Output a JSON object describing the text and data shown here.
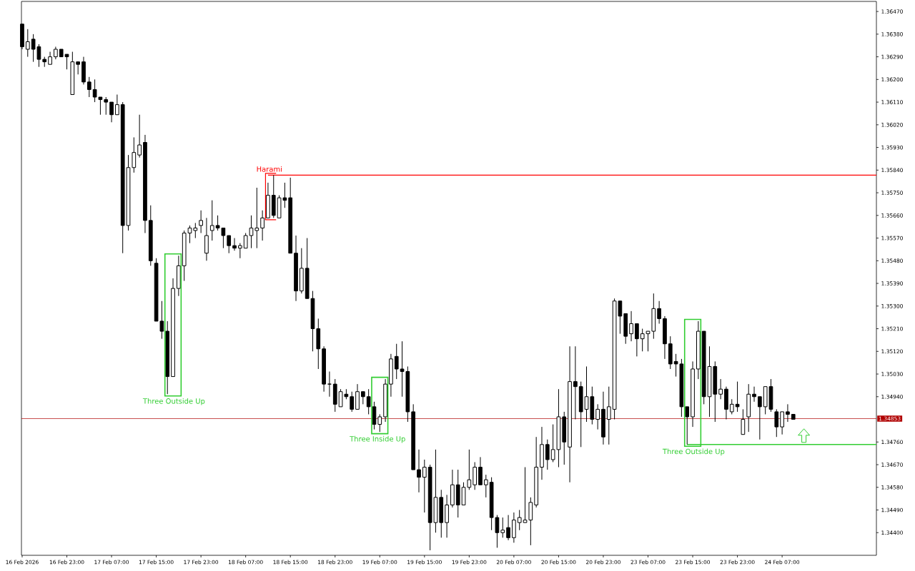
{
  "chart_data": {
    "type": "candlestick",
    "categories": [
      "16 Feb 2026",
      null,
      null,
      null,
      null,
      null,
      null,
      null,
      "16 Feb 23:00",
      null,
      null,
      null,
      null,
      null,
      null,
      null,
      "17 Feb 07:00",
      null,
      null,
      null,
      null,
      null,
      null,
      null,
      "17 Feb 15:00",
      null,
      null,
      null,
      null,
      null,
      null,
      null,
      "17 Feb 23:00",
      null,
      null,
      null,
      null,
      null,
      null,
      null,
      "18 Feb 07:00",
      null,
      null,
      null,
      null,
      null,
      null,
      null,
      "18 Feb 15:00",
      null,
      null,
      null,
      null,
      null,
      null,
      null,
      "18 Feb 23:00",
      null,
      null,
      null,
      null,
      null,
      null,
      null,
      "19 Feb 07:00",
      null,
      null,
      null,
      null,
      null,
      null,
      null,
      "19 Feb 15:00",
      null,
      null,
      null,
      null,
      null,
      null,
      null,
      "19 Feb 23:00",
      null,
      null,
      null,
      null,
      null,
      null,
      null,
      "20 Feb 07:00",
      null,
      null,
      null,
      null,
      null,
      null,
      null,
      "20 Feb 15:00",
      null,
      null,
      null,
      null,
      null,
      null,
      null,
      "20 Feb 23:00",
      null,
      null,
      null,
      null,
      null,
      null,
      null,
      "23 Feb 07:00",
      null,
      null,
      null,
      null,
      null,
      null,
      null,
      "23 Feb 15:00",
      null,
      null,
      null,
      null,
      null,
      null,
      null,
      "23 Feb 23:00",
      null,
      null,
      null,
      null,
      null,
      null,
      null,
      "24 Feb 07:00",
      null,
      null,
      null,
      null,
      null,
      null,
      null,
      null,
      null,
      null,
      null,
      null,
      null,
      null,
      null,
      null,
      null
    ],
    "ohlc": [
      [
        1.3642,
        1.3642,
        1.3632,
        1.3633
      ],
      [
        1.3632,
        1.364,
        1.3629,
        1.3635
      ],
      [
        1.3636,
        1.3638,
        1.3627,
        1.3632
      ],
      [
        1.3633,
        1.3634,
        1.3625,
        1.3628
      ],
      [
        1.3628,
        1.3629,
        1.3625,
        1.3627
      ],
      [
        1.3626,
        1.3631,
        1.3626,
        1.3629
      ],
      [
        1.3629,
        1.3633,
        1.3628,
        1.3632
      ],
      [
        1.3632,
        1.3632,
        1.3629,
        1.3629
      ],
      [
        1.363,
        1.363,
        1.3624,
        1.3629
      ],
      [
        1.3614,
        1.3631,
        1.3614,
        1.3627
      ],
      [
        1.3627,
        1.3627,
        1.3622,
        1.3626
      ],
      [
        1.3627,
        1.3629,
        1.3618,
        1.3619
      ],
      [
        1.3619,
        1.3621,
        1.3613,
        1.3616
      ],
      [
        1.3616,
        1.362,
        1.3611,
        1.3613
      ],
      [
        1.3613,
        1.3613,
        1.3606,
        1.3612
      ],
      [
        1.3612,
        1.3613,
        1.3606,
        1.3611
      ],
      [
        1.3611,
        1.3611,
        1.3603,
        1.3606
      ],
      [
        1.3606,
        1.3614,
        1.3606,
        1.361
      ],
      [
        1.361,
        1.3611,
        1.3551,
        1.3562
      ],
      [
        1.3562,
        1.359,
        1.356,
        1.3585
      ],
      [
        1.3585,
        1.3597,
        1.3583,
        1.3591
      ],
      [
        1.359,
        1.3606,
        1.3589,
        1.3594
      ],
      [
        1.3595,
        1.3598,
        1.3559,
        1.3564
      ],
      [
        1.3564,
        1.357,
        1.3546,
        1.3548
      ],
      [
        1.3547,
        1.3549,
        1.3524,
        1.3524
      ],
      [
        1.3524,
        1.3532,
        1.3517,
        1.352
      ],
      [
        1.352,
        1.3524,
        1.3495,
        1.3502
      ],
      [
        1.3502,
        1.3541,
        1.3502,
        1.3537
      ],
      [
        1.3537,
        1.355,
        1.3534,
        1.3546
      ],
      [
        1.3546,
        1.356,
        1.354,
        1.3559
      ],
      [
        1.3559,
        1.3562,
        1.3555,
        1.3561
      ],
      [
        1.356,
        1.3563,
        1.3557,
        1.3561
      ],
      [
        1.3562,
        1.3568,
        1.3559,
        1.3564
      ],
      [
        1.3551,
        1.3565,
        1.3548,
        1.3558
      ],
      [
        1.356,
        1.3572,
        1.3556,
        1.3562
      ],
      [
        1.3562,
        1.3566,
        1.356,
        1.3561
      ],
      [
        1.3561,
        1.3561,
        1.3553,
        1.3558
      ],
      [
        1.3558,
        1.3558,
        1.3551,
        1.3554
      ],
      [
        1.3554,
        1.3557,
        1.3552,
        1.3553
      ],
      [
        1.3553,
        1.3555,
        1.3549,
        1.3554
      ],
      [
        1.3553,
        1.3559,
        1.3553,
        1.3558
      ],
      [
        1.3558,
        1.3566,
        1.3553,
        1.3561
      ],
      [
        1.356,
        1.3577,
        1.3553,
        1.3561
      ],
      [
        1.3561,
        1.3568,
        1.3556,
        1.3565
      ],
      [
        1.3565,
        1.3579,
        1.3565,
        1.3574
      ],
      [
        1.3574,
        1.3582,
        1.3565,
        1.3566
      ],
      [
        1.3565,
        1.3574,
        1.3565,
        1.3573
      ],
      [
        1.3573,
        1.3579,
        1.3569,
        1.3572
      ],
      [
        1.3573,
        1.3581,
        1.3551,
        1.3551
      ],
      [
        1.3551,
        1.3558,
        1.3532,
        1.3536
      ],
      [
        1.3536,
        1.3553,
        1.3535,
        1.3545
      ],
      [
        1.3545,
        1.3557,
        1.3533,
        1.3533
      ],
      [
        1.3533,
        1.3536,
        1.3512,
        1.3521
      ],
      [
        1.3521,
        1.3525,
        1.3505,
        1.3513
      ],
      [
        1.3513,
        1.3514,
        1.3496,
        1.3499
      ],
      [
        1.3499,
        1.3504,
        1.3494,
        1.3499
      ],
      [
        1.3499,
        1.3501,
        1.3488,
        1.3491
      ],
      [
        1.349,
        1.3497,
        1.349,
        1.3496
      ],
      [
        1.3495,
        1.3497,
        1.3493,
        1.3494
      ],
      [
        1.3494,
        1.3496,
        1.3488,
        1.3489
      ],
      [
        1.3489,
        1.3499,
        1.3489,
        1.3496
      ],
      [
        1.3496,
        1.3496,
        1.3491,
        1.3494
      ],
      [
        1.3494,
        1.3497,
        1.3487,
        1.349
      ],
      [
        1.349,
        1.3492,
        1.3481,
        1.3483
      ],
      [
        1.3483,
        1.3487,
        1.348,
        1.3486
      ],
      [
        1.3486,
        1.3501,
        1.3484,
        1.3499
      ],
      [
        1.3499,
        1.3511,
        1.3494,
        1.3509
      ],
      [
        1.351,
        1.3515,
        1.3501,
        1.3505
      ],
      [
        1.3505,
        1.3516,
        1.3494,
        1.3504
      ],
      [
        1.3504,
        1.3506,
        1.3484,
        1.3488
      ],
      [
        1.3488,
        1.3491,
        1.3465,
        1.3465
      ],
      [
        1.3465,
        1.3473,
        1.3456,
        1.3462
      ],
      [
        1.3462,
        1.3469,
        1.3448,
        1.3466
      ],
      [
        1.3466,
        1.3467,
        1.3433,
        1.3444
      ],
      [
        1.3444,
        1.3473,
        1.344,
        1.3454
      ],
      [
        1.3454,
        1.3457,
        1.3438,
        1.3444
      ],
      [
        1.3444,
        1.3455,
        1.3438,
        1.3451
      ],
      [
        1.3451,
        1.3465,
        1.345,
        1.3459
      ],
      [
        1.3459,
        1.3465,
        1.3446,
        1.3451
      ],
      [
        1.3451,
        1.346,
        1.3451,
        1.3458
      ],
      [
        1.3458,
        1.3473,
        1.3457,
        1.3461
      ],
      [
        1.3459,
        1.3468,
        1.3457,
        1.3466
      ],
      [
        1.3466,
        1.347,
        1.3459,
        1.3459
      ],
      [
        1.3459,
        1.3463,
        1.3454,
        1.3461
      ],
      [
        1.346,
        1.3462,
        1.3441,
        1.3446
      ],
      [
        1.3446,
        1.3447,
        1.3434,
        1.344
      ],
      [
        1.344,
        1.3446,
        1.3438,
        1.3441
      ],
      [
        1.3442,
        1.3447,
        1.3437,
        1.3438
      ],
      [
        1.3438,
        1.3448,
        1.3436,
        1.3445
      ],
      [
        1.3444,
        1.3449,
        1.3441,
        1.3446
      ],
      [
        1.3444,
        1.3466,
        1.3444,
        1.3445
      ],
      [
        1.3445,
        1.3454,
        1.3435,
        1.3452
      ],
      [
        1.3451,
        1.3478,
        1.345,
        1.3466
      ],
      [
        1.3466,
        1.3482,
        1.3461,
        1.3475
      ],
      [
        1.3475,
        1.3477,
        1.3465,
        1.3469
      ],
      [
        1.3469,
        1.3483,
        1.3468,
        1.3473
      ],
      [
        1.3473,
        1.3497,
        1.3466,
        1.3486
      ],
      [
        1.3486,
        1.3488,
        1.3467,
        1.3476
      ],
      [
        1.3474,
        1.3514,
        1.346,
        1.35
      ],
      [
        1.35,
        1.3514,
        1.3485,
        1.3498
      ],
      [
        1.3498,
        1.35,
        1.3474,
        1.3488
      ],
      [
        1.3489,
        1.3506,
        1.3484,
        1.3494
      ],
      [
        1.3494,
        1.3498,
        1.3483,
        1.3485
      ],
      [
        1.3485,
        1.3491,
        1.3481,
        1.3489
      ],
      [
        1.3489,
        1.3496,
        1.3475,
        1.3478
      ],
      [
        1.3485,
        1.3498,
        1.3475,
        1.349
      ],
      [
        1.3489,
        1.3533,
        1.3485,
        1.3532
      ],
      [
        1.3532,
        1.3532,
        1.3519,
        1.3526
      ],
      [
        1.3527,
        1.3527,
        1.3515,
        1.3518
      ],
      [
        1.3519,
        1.3528,
        1.3516,
        1.3523
      ],
      [
        1.3523,
        1.3523,
        1.351,
        1.3517
      ],
      [
        1.3517,
        1.3521,
        1.3512,
        1.3519
      ],
      [
        1.3519,
        1.352,
        1.3512,
        1.352
      ],
      [
        1.352,
        1.3535,
        1.3517,
        1.3529
      ],
      [
        1.3529,
        1.3532,
        1.3523,
        1.3525
      ],
      [
        1.3525,
        1.3526,
        1.3509,
        1.3515
      ],
      [
        1.3515,
        1.3518,
        1.3505,
        1.3507
      ],
      [
        1.3508,
        1.3511,
        1.3502,
        1.3507
      ],
      [
        1.3507,
        1.3509,
        1.3486,
        1.349
      ],
      [
        1.349,
        1.349,
        1.3475,
        1.3486
      ],
      [
        1.3486,
        1.3508,
        1.3482,
        1.3505
      ],
      [
        1.3505,
        1.3524,
        1.3501,
        1.352
      ],
      [
        1.352,
        1.352,
        1.3491,
        1.3494
      ],
      [
        1.3494,
        1.3514,
        1.3486,
        1.3506
      ],
      [
        1.3506,
        1.3508,
        1.3484,
        1.3495
      ],
      [
        1.3495,
        1.3501,
        1.3493,
        1.3497
      ],
      [
        1.3497,
        1.3498,
        1.3485,
        1.3489
      ],
      [
        1.3488,
        1.3493,
        1.3487,
        1.3491
      ],
      [
        1.3491,
        1.35,
        1.3488,
        1.349
      ],
      [
        1.3479,
        1.3489,
        1.3479,
        1.3485
      ],
      [
        1.3486,
        1.3499,
        1.348,
        1.3495
      ],
      [
        1.3495,
        1.3498,
        1.3492,
        1.3494
      ],
      [
        1.3494,
        1.3494,
        1.3477,
        1.349
      ],
      [
        1.349,
        1.3498,
        1.3487,
        1.3498
      ],
      [
        1.3498,
        1.3501,
        1.3488,
        1.3489
      ],
      [
        1.3488,
        1.3489,
        1.3478,
        1.3482
      ],
      [
        1.3482,
        1.3488,
        1.3479,
        1.3488
      ],
      [
        1.3488,
        1.3491,
        1.3484,
        1.3487
      ],
      [
        1.3487,
        1.3487,
        1.3485,
        1.3485
      ],
      null,
      null,
      null,
      null,
      null,
      null,
      null,
      null,
      null,
      null,
      null,
      null,
      null,
      null,
      null
    ],
    "ylim": [
      1.3431,
      1.3651
    ],
    "yticks": [
      {
        "value": 1.344,
        "label": "1.34400"
      },
      {
        "value": 1.3449,
        "label": "1.34490"
      },
      {
        "value": 1.3458,
        "label": "1.34580"
      },
      {
        "value": 1.3467,
        "label": "1.34670"
      },
      {
        "value": 1.3476,
        "label": "1.34760"
      },
      {
        "value": 1.3494,
        "label": "1.34940"
      },
      {
        "value": 1.3503,
        "label": "1.35030"
      },
      {
        "value": 1.3512,
        "label": "1.35120"
      },
      {
        "value": 1.3521,
        "label": "1.35210"
      },
      {
        "value": 1.353,
        "label": "1.35300"
      },
      {
        "value": 1.3539,
        "label": "1.35390"
      },
      {
        "value": 1.3548,
        "label": "1.35480"
      },
      {
        "value": 1.3557,
        "label": "1.35570"
      },
      {
        "value": 1.3566,
        "label": "1.35660"
      },
      {
        "value": 1.3575,
        "label": "1.35750"
      },
      {
        "value": 1.3584,
        "label": "1.35840"
      },
      {
        "value": 1.3593,
        "label": "1.35930"
      },
      {
        "value": 1.3602,
        "label": "1.36020"
      },
      {
        "value": 1.3611,
        "label": "1.36110"
      },
      {
        "value": 1.362,
        "label": "1.36200"
      },
      {
        "value": 1.3629,
        "label": "1.36290"
      },
      {
        "value": 1.3638,
        "label": "1.36380"
      },
      {
        "value": 1.3647,
        "label": "1.36470"
      }
    ],
    "ref_lines": [
      {
        "axis": "y",
        "value": 1.3582,
        "label": "Harami",
        "color": "#ff0000"
      },
      {
        "axis": "y",
        "value": 1.3475,
        "label": "Three Outside Up",
        "color": "#32cd32"
      },
      {
        "axis": "y",
        "value": 1.34853,
        "label": "1.34853",
        "color": "#b00000"
      }
    ],
    "annotations": [
      "Three Outside Up",
      "Three Inside Up"
    ]
  }
}
